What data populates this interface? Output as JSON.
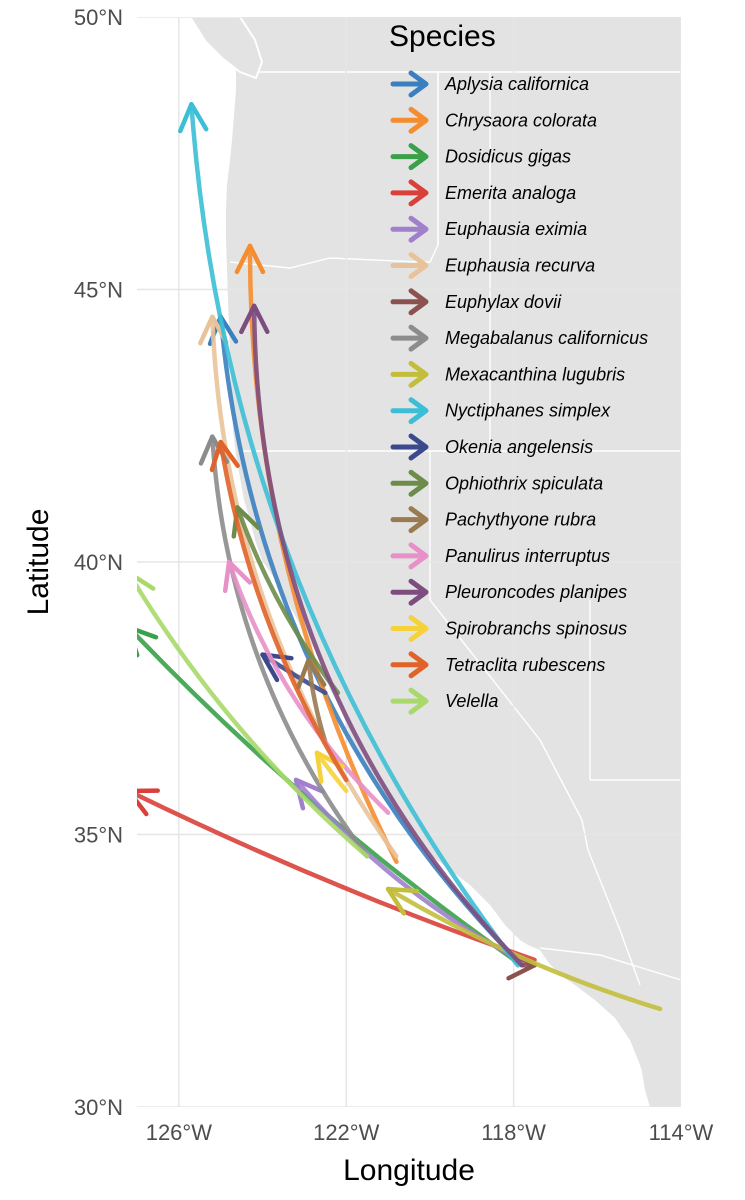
{
  "figure": {
    "xlabel": "Longitude",
    "ylabel": "Latitude",
    "xlim": [
      -127,
      -114
    ],
    "ylim": [
      30,
      50
    ],
    "x_ticks": [
      {
        "value": -126,
        "label": "126°W"
      },
      {
        "value": -122,
        "label": "122°W"
      },
      {
        "value": -118,
        "label": "118°W"
      },
      {
        "value": -114,
        "label": "114°W"
      }
    ],
    "y_ticks": [
      {
        "value": 30,
        "label": "30°N"
      },
      {
        "value": 35,
        "label": "35°N"
      },
      {
        "value": 40,
        "label": "40°N"
      },
      {
        "value": 45,
        "label": "45°N"
      },
      {
        "value": 50,
        "label": "50°N"
      }
    ],
    "grid": true,
    "land_color": "#e3e3e3",
    "ocean_color": "#ffffff",
    "legend": {
      "title": "Species",
      "position": "top-right"
    }
  },
  "species": [
    {
      "name": "Aplysia californica",
      "color": "#3a7fbf",
      "from": [
        -117.8,
        32.6
      ],
      "to": [
        -125.0,
        44.5
      ],
      "bend": 0.18
    },
    {
      "name": "Chrysaora colorata",
      "color": "#f58d2f",
      "from": [
        -120.8,
        34.5
      ],
      "to": [
        -124.3,
        45.8
      ],
      "bend": 0.12
    },
    {
      "name": "Dosidicus gigas",
      "color": "#3aa14a",
      "from": [
        -117.8,
        32.6
      ],
      "to": [
        -127.2,
        38.8
      ],
      "bend": 0.05
    },
    {
      "name": "Emerita analoga",
      "color": "#d9403a",
      "from": [
        -117.5,
        32.7
      ],
      "to": [
        -127.2,
        35.8
      ],
      "bend": 0.03
    },
    {
      "name": "Euphausia eximia",
      "color": "#a07fcc",
      "from": [
        -117.6,
        32.6
      ],
      "to": [
        -123.2,
        36.0
      ],
      "bend": 0.1
    },
    {
      "name": "Euphausia recurva",
      "color": "#e8c39a",
      "from": [
        -120.8,
        34.6
      ],
      "to": [
        -125.2,
        44.5
      ],
      "bend": 0.15
    },
    {
      "name": "Euphylax dovii",
      "color": "#8c5250",
      "from": [
        -117.8,
        32.6
      ],
      "to": [
        -117.5,
        32.6
      ],
      "bend": 0.0
    },
    {
      "name": "Megabalanus californicus",
      "color": "#8c8c8c",
      "from": [
        -121.5,
        34.6
      ],
      "to": [
        -125.2,
        42.3
      ],
      "bend": 0.15
    },
    {
      "name": "Mexacanthina lugubris",
      "color": "#c2be3c",
      "from": [
        -114.5,
        31.8
      ],
      "to": [
        -121.0,
        34.0
      ],
      "bend": 0.06
    },
    {
      "name": "Nyctiphanes simplex",
      "color": "#3cbfd6",
      "from": [
        -117.9,
        32.6
      ],
      "to": [
        -125.7,
        48.4
      ],
      "bend": 0.15
    },
    {
      "name": "Okenia angelensis",
      "color": "#3b4a8c",
      "from": [
        -122.5,
        37.6
      ],
      "to": [
        -124.0,
        38.3
      ],
      "bend": 0.02
    },
    {
      "name": "Ophiothrix spiculata",
      "color": "#6d8c4a",
      "from": [
        -122.2,
        37.6
      ],
      "to": [
        -124.6,
        41.0
      ],
      "bend": 0.08
    },
    {
      "name": "Pachythyone rubra",
      "color": "#9a7a50",
      "from": [
        -122.5,
        36.7
      ],
      "to": [
        -122.9,
        38.2
      ],
      "bend": 0.05
    },
    {
      "name": "Panulirus interruptus",
      "color": "#e890c8",
      "from": [
        -121.0,
        35.4
      ],
      "to": [
        -124.8,
        40.0
      ],
      "bend": 0.12
    },
    {
      "name": "Pleuroncodes planipes",
      "color": "#7e4d80",
      "from": [
        -117.8,
        32.6
      ],
      "to": [
        -124.2,
        44.7
      ],
      "bend": 0.2
    },
    {
      "name": "Spirobranchs spinosus",
      "color": "#f5d23a",
      "from": [
        -122.0,
        35.8
      ],
      "to": [
        -122.7,
        36.5
      ],
      "bend": 0.02
    },
    {
      "name": "Tetraclita rubescens",
      "color": "#e0632a",
      "from": [
        -122.0,
        36.0
      ],
      "to": [
        -125.0,
        42.2
      ],
      "bend": 0.1
    },
    {
      "name": "Velella",
      "color": "#a8d96a",
      "from": [
        -121.5,
        34.6
      ],
      "to": [
        -127.2,
        39.8
      ],
      "bend": 0.08
    }
  ]
}
